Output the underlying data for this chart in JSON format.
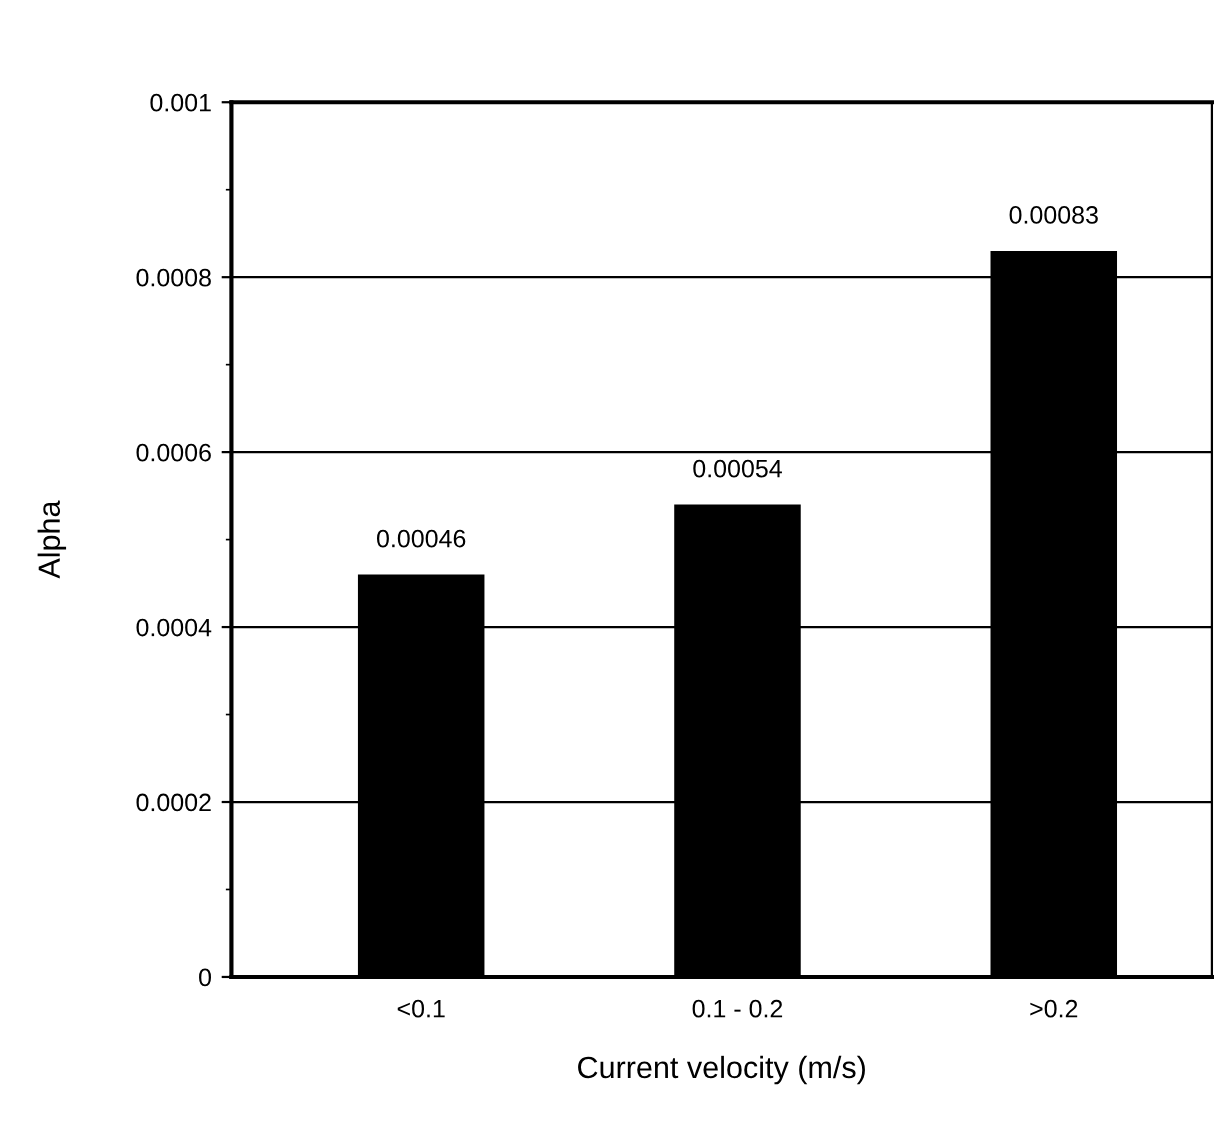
{
  "chart_data": {
    "type": "bar",
    "xlabel": "Current velocity (m/s)",
    "ylabel": "Alpha",
    "categories": [
      "<0.1",
      "0.1 - 0.2",
      ">0.2"
    ],
    "values": [
      0.00046,
      0.00054,
      0.00083
    ],
    "color": "#000000",
    "ylim": [
      0,
      0.001
    ],
    "yticks": [
      0,
      0.0002,
      0.0004,
      0.0006,
      0.0008,
      0.001
    ],
    "grid": "y",
    "data_labels": true
  }
}
